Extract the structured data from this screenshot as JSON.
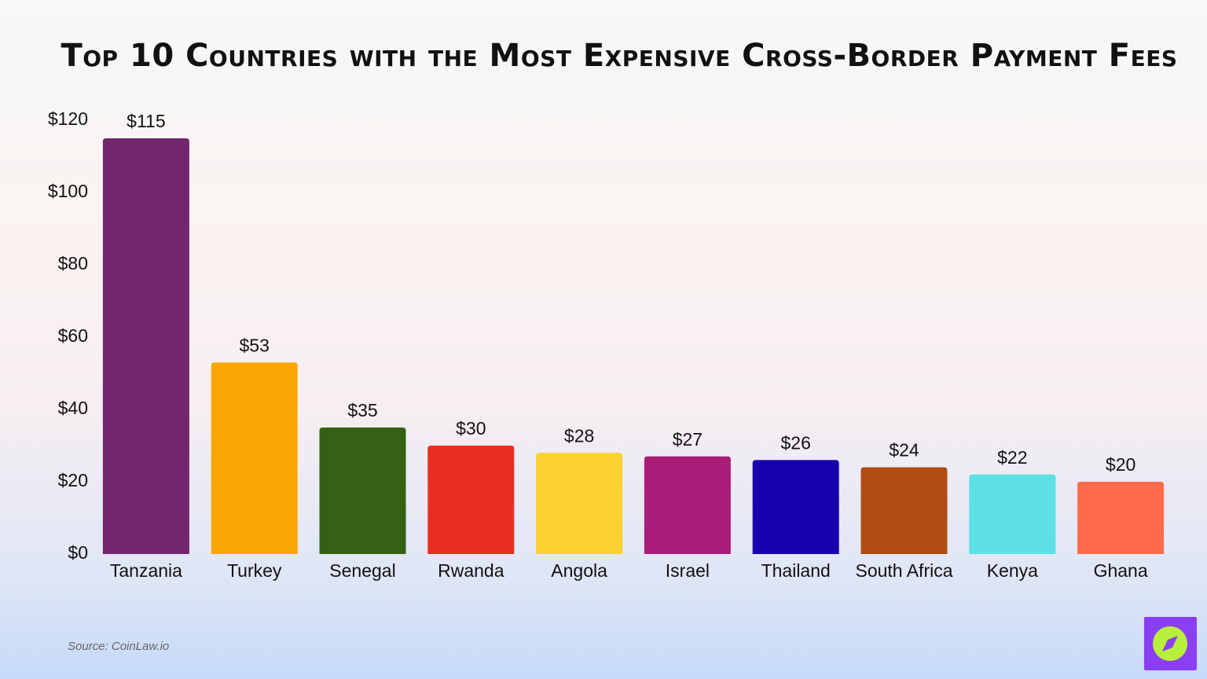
{
  "chart_data": {
    "type": "bar",
    "title": "Top 10 Countries with the Most Expensive Cross-Border Payment Fees",
    "categories": [
      "Tanzania",
      "Turkey",
      "Senegal",
      "Rwanda",
      "Angola",
      "Israel",
      "Thailand",
      "South Africa",
      "Kenya",
      "Ghana"
    ],
    "values": [
      115,
      53,
      35,
      30,
      28,
      27,
      26,
      24,
      22,
      20
    ],
    "value_labels": [
      "$115",
      "$53",
      "$35",
      "$30",
      "$28",
      "$27",
      "$26",
      "$24",
      "$22",
      "$20"
    ],
    "colors": [
      "#72266e",
      "#f9a602",
      "#346114",
      "#e92e21",
      "#fdd130",
      "#a91d78",
      "#1800ac",
      "#ae4c12",
      "#5de0e6",
      "#ff6b4b"
    ],
    "ylim": [
      0,
      120
    ],
    "yticks": [
      {
        "value": 0,
        "label": "$0"
      },
      {
        "value": 20,
        "label": "$20"
      },
      {
        "value": 40,
        "label": "$40"
      },
      {
        "value": 60,
        "label": "$60"
      },
      {
        "value": 80,
        "label": "$80"
      },
      {
        "value": 100,
        "label": "$100"
      },
      {
        "value": 120,
        "label": "$120"
      }
    ],
    "grid": false,
    "source": "Source: CoinLaw.io"
  }
}
